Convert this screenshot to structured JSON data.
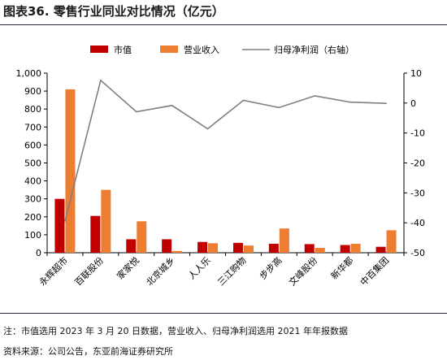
{
  "title": "图表36.  零售行业同业对比情况（亿元）",
  "note": "注：市值选用 2023 年 3 月 20 日数据，营业收入、归母净利润选用 2021 年年报数据",
  "source": "资料来源：公司公告，东亚前海证券研究所",
  "chart_data": {
    "type": "bar",
    "categories": [
      "永辉超市",
      "百联股份",
      "家家悦",
      "北京城乡",
      "人人乐",
      "三江购物",
      "步步高",
      "文峰股份",
      "新华都",
      "中百集团"
    ],
    "series": [
      {
        "name": "市值",
        "type": "bar",
        "axis": "left",
        "color": "#c00000",
        "values": [
          300,
          205,
          75,
          75,
          60,
          55,
          50,
          48,
          43,
          33
        ]
      },
      {
        "name": "营业收入",
        "type": "bar",
        "axis": "left",
        "color": "#ed7d31",
        "values": [
          910,
          350,
          175,
          10,
          53,
          40,
          135,
          27,
          50,
          125
        ]
      },
      {
        "name": "归母净利润（右轴）",
        "type": "line",
        "axis": "right",
        "color": "#7f7f7f",
        "values": [
          -39.4,
          7.6,
          -2.9,
          -0.8,
          -8.6,
          0.9,
          -1.5,
          2.4,
          0.3,
          -0.1
        ]
      }
    ],
    "y_left": {
      "min": 0,
      "max": 1000,
      "ticks": [
        "0",
        "100",
        "200",
        "300",
        "400",
        "500",
        "600",
        "700",
        "800",
        "900",
        "1,000"
      ]
    },
    "y_right": {
      "min": -50,
      "max": 10,
      "ticks": [
        "-50",
        "-40",
        "-30",
        "-20",
        "-10",
        "0",
        "10"
      ]
    },
    "legend_position": "top",
    "grid": false
  }
}
